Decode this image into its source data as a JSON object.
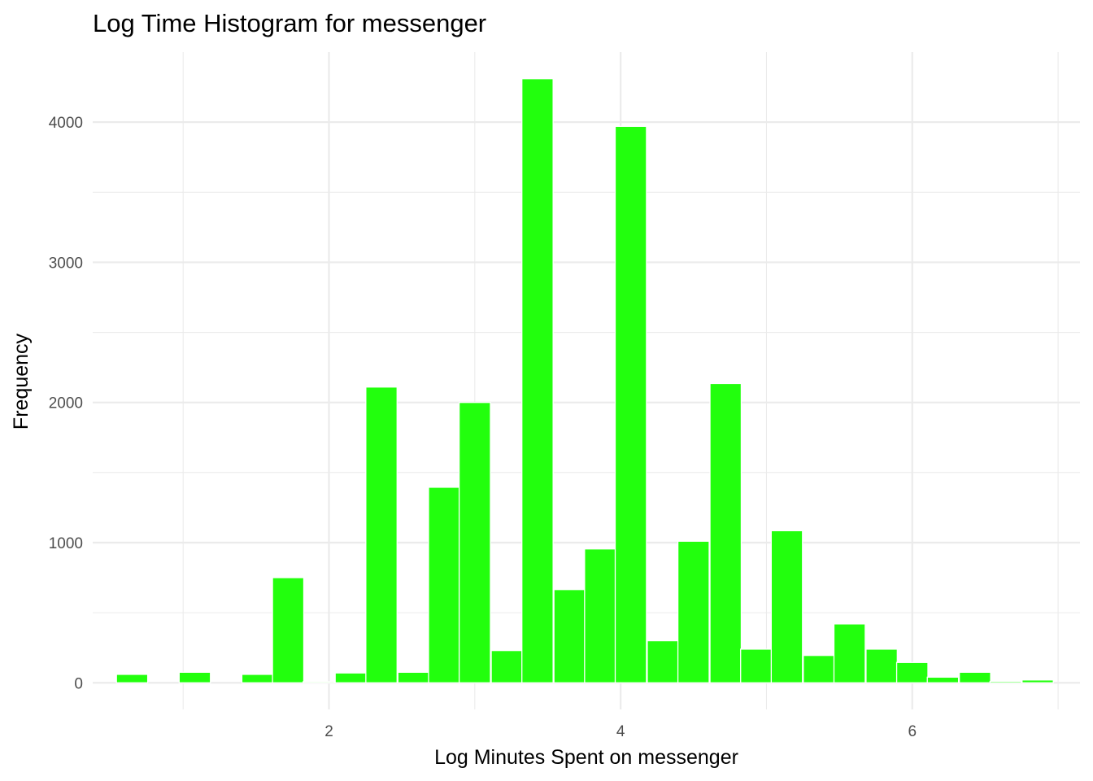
{
  "chart_data": {
    "type": "bar",
    "title": "Log Time Histogram for messenger",
    "xlabel": "Log Minutes Spent on messenger",
    "ylabel": "Frequency",
    "xlim": [
      0.38,
      7.15
    ],
    "ylim": [
      -190,
      4500
    ],
    "x_ticks": [
      2,
      4,
      6
    ],
    "x_tick_labels": [
      "2",
      "4",
      "6"
    ],
    "x_minor_ticks": [
      1,
      3,
      5,
      7
    ],
    "y_ticks": [
      0,
      1000,
      2000,
      3000,
      4000
    ],
    "y_tick_labels": [
      "0",
      "1000",
      "2000",
      "3000",
      "4000"
    ],
    "y_minor_ticks": [
      500,
      1500,
      2500,
      3500
    ],
    "grid": true,
    "bar_color": "#22ff0d",
    "bin_width": 0.2142,
    "bins": [
      {
        "x": 0.65,
        "count": 60
      },
      {
        "x": 0.86,
        "count": 0
      },
      {
        "x": 1.08,
        "count": 75
      },
      {
        "x": 1.29,
        "count": 0
      },
      {
        "x": 1.51,
        "count": 60
      },
      {
        "x": 1.72,
        "count": 750
      },
      {
        "x": 1.93,
        "count": 8
      },
      {
        "x": 2.15,
        "count": 70
      },
      {
        "x": 2.36,
        "count": 2110
      },
      {
        "x": 2.58,
        "count": 75
      },
      {
        "x": 2.79,
        "count": 1395
      },
      {
        "x": 3.0,
        "count": 2000
      },
      {
        "x": 3.22,
        "count": 230
      },
      {
        "x": 3.43,
        "count": 4310
      },
      {
        "x": 3.65,
        "count": 665
      },
      {
        "x": 3.86,
        "count": 955
      },
      {
        "x": 4.07,
        "count": 3970
      },
      {
        "x": 4.29,
        "count": 300
      },
      {
        "x": 4.5,
        "count": 1010
      },
      {
        "x": 4.72,
        "count": 2135
      },
      {
        "x": 4.93,
        "count": 240
      },
      {
        "x": 5.14,
        "count": 1085
      },
      {
        "x": 5.36,
        "count": 195
      },
      {
        "x": 5.57,
        "count": 420
      },
      {
        "x": 5.79,
        "count": 240
      },
      {
        "x": 6.0,
        "count": 145
      },
      {
        "x": 6.21,
        "count": 40
      },
      {
        "x": 6.43,
        "count": 75
      },
      {
        "x": 6.64,
        "count": 10
      },
      {
        "x": 6.86,
        "count": 20
      }
    ]
  }
}
